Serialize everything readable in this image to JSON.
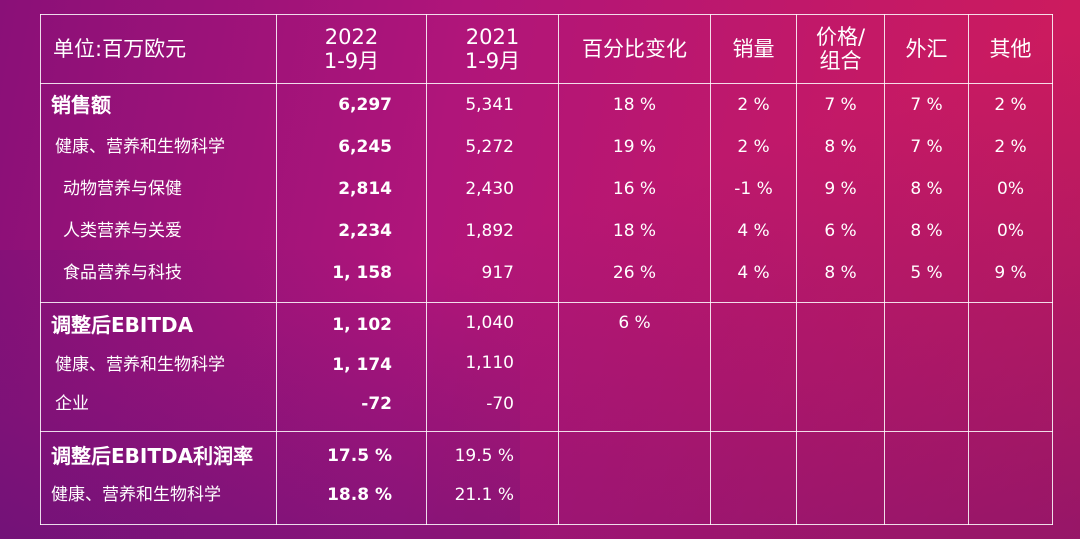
{
  "header": {
    "unit": "单位:百万欧元",
    "y2022_year": "2022",
    "y2022_period": "1-9月",
    "y2021_year": "2021",
    "y2021_period": "1-9月",
    "pct_change": "百分比变化",
    "volume": "销量",
    "price_mix_1": "价格/",
    "price_mix_2": "组合",
    "fx": "外汇",
    "other": "其他"
  },
  "sales": [
    {
      "label": "销售额",
      "y2022": "6,297",
      "y2021": "5,341",
      "change": "18 %",
      "volume": "2 %",
      "price_mix": "7 %",
      "fx": "7 %",
      "other": "2 %"
    },
    {
      "label": "健康、营养和生物科学",
      "y2022": "6,245",
      "y2021": "5,272",
      "change": "19 %",
      "volume": "2 %",
      "price_mix": "8 %",
      "fx": "7 %",
      "other": "2 %"
    },
    {
      "label": "动物营养与保健",
      "y2022": "2,814",
      "y2021": "2,430",
      "change": "16 %",
      "volume": "-1 %",
      "price_mix": "9 %",
      "fx": "8 %",
      "other": "0%"
    },
    {
      "label": "人类营养与关爱",
      "y2022": "2,234",
      "y2021": "1,892",
      "change": "18 %",
      "volume": "4 %",
      "price_mix": "6 %",
      "fx": "8 %",
      "other": "0%"
    },
    {
      "label": "食品营养与科技",
      "y2022": "1, 158",
      "y2021": "917",
      "change": "26 %",
      "volume": "4 %",
      "price_mix": "8 %",
      "fx": "5 %",
      "other": "9 %"
    }
  ],
  "ebitda": [
    {
      "label": "调整后EBITDA",
      "y2022": "1, 102",
      "y2021": "1,040",
      "change": "6 %"
    },
    {
      "label": "健康、营养和生物科学",
      "y2022": "1, 174",
      "y2021": "1,110",
      "change": ""
    },
    {
      "label": "企业",
      "y2022": "-72",
      "y2021": "-70",
      "change": ""
    }
  ],
  "margin": [
    {
      "label": "调整后EBITDA利润率",
      "y2022": "17.5 %",
      "y2021": "19.5 %"
    },
    {
      "label": "健康、营养和生物科学",
      "y2022": "18.8 %",
      "y2021": "21.1 %"
    }
  ]
}
